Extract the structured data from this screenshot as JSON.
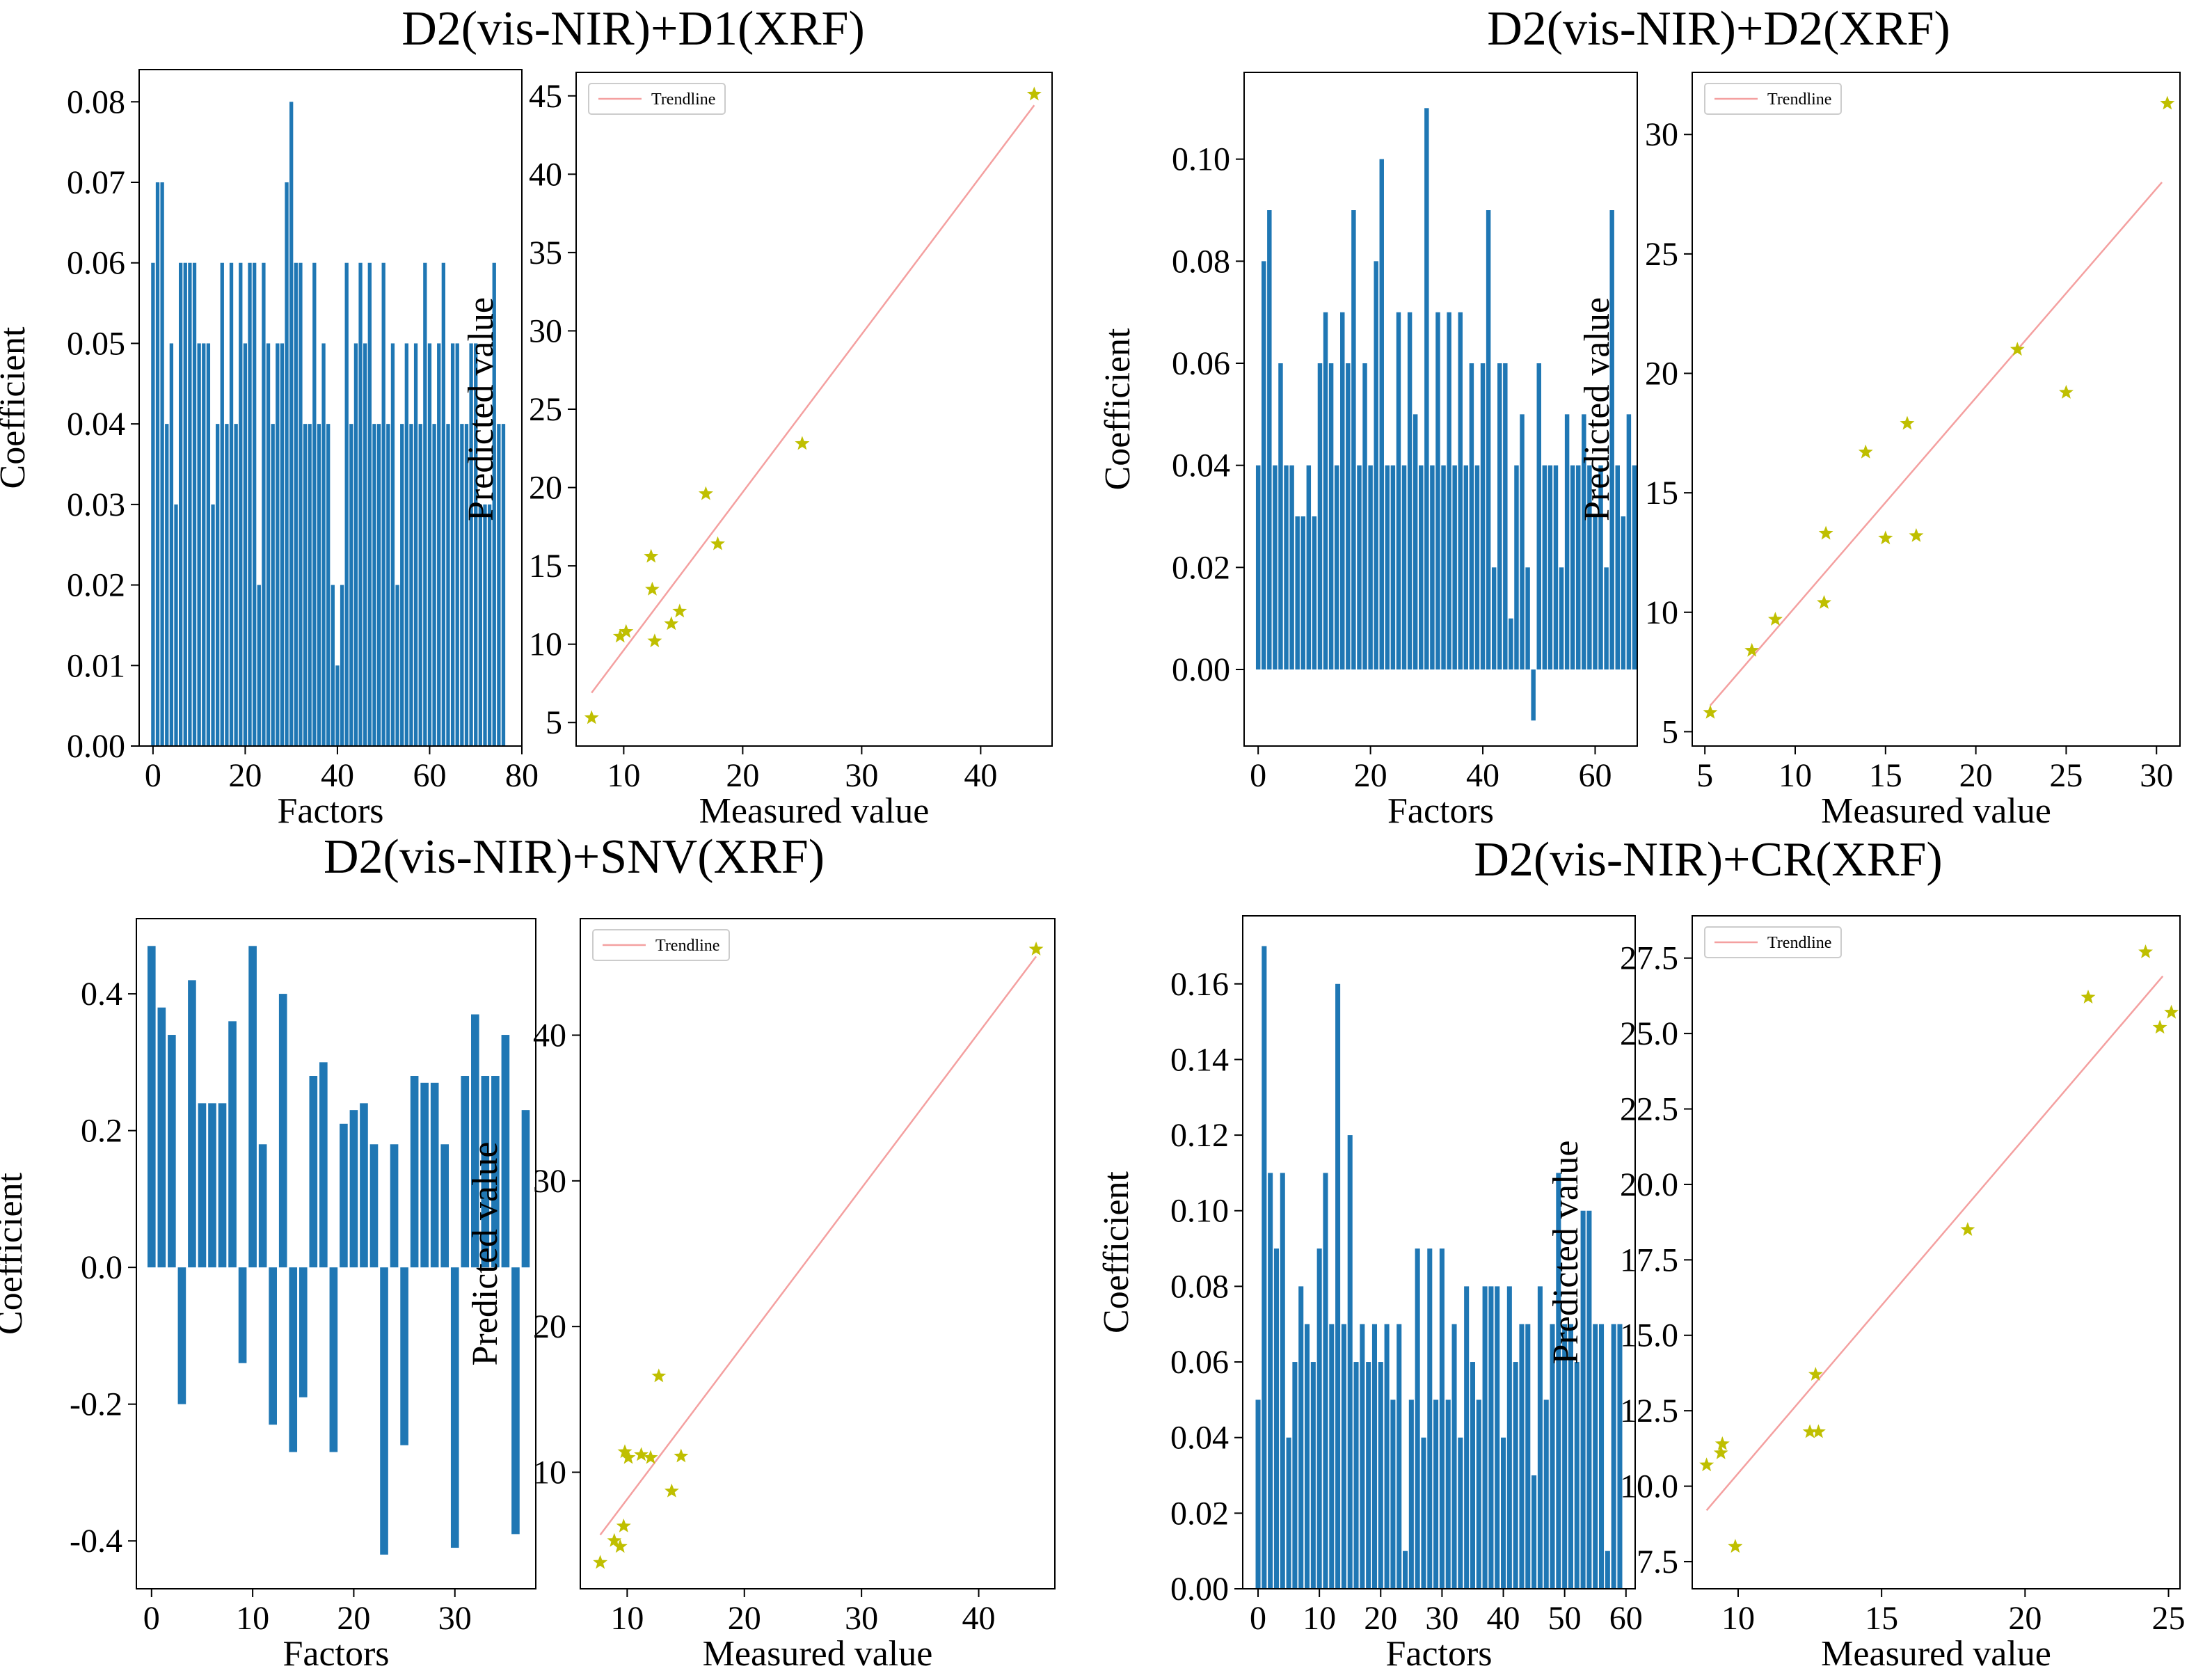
{
  "colors": {
    "bar": "#1f77b4",
    "point": "#bfbf00",
    "trendline": "#f4a0a0",
    "axis": "#000000",
    "background": "#ffffff"
  },
  "panels": [
    {
      "title": "D2(vis-NIR)+D1(XRF)",
      "coefficients": {
        "xlabel": "Factors",
        "ylabel": "Coefficient",
        "xticks": [
          "0",
          "20",
          "40",
          "60",
          "80"
        ],
        "yticks": [
          "0.00",
          "0.01",
          "0.02",
          "0.03",
          "0.04",
          "0.05",
          "0.06",
          "0.07",
          "0.08"
        ]
      },
      "scatter": {
        "xlabel": "Measured value",
        "ylabel": "Predicted value",
        "legend": "Trendline",
        "xticks": [
          "10",
          "20",
          "30",
          "40"
        ],
        "yticks": [
          "5",
          "10",
          "15",
          "20",
          "25",
          "30",
          "35",
          "40",
          "45"
        ]
      }
    },
    {
      "title": "D2(vis-NIR)+D2(XRF)",
      "coefficients": {
        "xlabel": "Factors",
        "ylabel": "Coefficient",
        "xticks": [
          "0",
          "20",
          "40",
          "60"
        ],
        "yticks": [
          "0.00",
          "0.02",
          "0.04",
          "0.06",
          "0.08",
          "0.10"
        ]
      },
      "scatter": {
        "xlabel": "Measured value",
        "ylabel": "Predicted value",
        "legend": "Trendline",
        "xticks": [
          "5",
          "10",
          "15",
          "20",
          "25",
          "30"
        ],
        "yticks": [
          "5",
          "10",
          "15",
          "20",
          "25",
          "30"
        ]
      }
    },
    {
      "title": "D2(vis-NIR)+SNV(XRF)",
      "coefficients": {
        "xlabel": "Factors",
        "ylabel": "Coefficient",
        "xticks": [
          "0",
          "10",
          "20",
          "30"
        ],
        "yticks": [
          "-0.4",
          "-0.2",
          "0.0",
          "0.2",
          "0.4"
        ]
      },
      "scatter": {
        "xlabel": "Measured value",
        "ylabel": "Predicted value",
        "legend": "Trendline",
        "xticks": [
          "10",
          "20",
          "30",
          "40"
        ],
        "yticks": [
          "10",
          "20",
          "30",
          "40"
        ]
      }
    },
    {
      "title": "D2(vis-NIR)+CR(XRF)",
      "coefficients": {
        "xlabel": "Factors",
        "ylabel": "Coefficient",
        "xticks": [
          "0",
          "10",
          "20",
          "30",
          "40",
          "50",
          "60"
        ],
        "yticks": [
          "0.00",
          "0.02",
          "0.04",
          "0.06",
          "0.08",
          "0.10",
          "0.12",
          "0.14",
          "0.16"
        ]
      },
      "scatter": {
        "xlabel": "Measured value",
        "ylabel": "Predicted value",
        "legend": "Trendline",
        "xticks": [
          "10",
          "15",
          "20",
          "25"
        ],
        "yticks": [
          "7.5",
          "10.0",
          "12.5",
          "15.0",
          "17.5",
          "20.0",
          "22.5",
          "25.0",
          "27.5"
        ]
      }
    }
  ],
  "chart_data": [
    {
      "type": "bar",
      "title": "D2(vis-NIR)+D1(XRF)",
      "xlabel": "Factors",
      "ylabel": "Coefficient",
      "xlim": [
        -3,
        80
      ],
      "ylim": [
        0,
        0.084
      ],
      "x_start": 0,
      "values": [
        0.06,
        0.07,
        0.07,
        0.04,
        0.05,
        0.03,
        0.06,
        0.06,
        0.06,
        0.06,
        0.05,
        0.05,
        0.05,
        0.03,
        0.04,
        0.06,
        0.04,
        0.06,
        0.04,
        0.06,
        0.05,
        0.06,
        0.06,
        0.02,
        0.06,
        0.05,
        0.04,
        0.05,
        0.05,
        0.07,
        0.08,
        0.06,
        0.06,
        0.04,
        0.04,
        0.06,
        0.04,
        0.05,
        0.04,
        0.02,
        0.01,
        0.02,
        0.06,
        0.04,
        0.05,
        0.06,
        0.05,
        0.06,
        0.04,
        0.04,
        0.06,
        0.04,
        0.05,
        0.02,
        0.04,
        0.05,
        0.04,
        0.05,
        0.04,
        0.06,
        0.05,
        0.04,
        0.05,
        0.06,
        0.04,
        0.05,
        0.05,
        0.04,
        0.04,
        0.05,
        0.05,
        0.03,
        0.03,
        0.03,
        0.06,
        0.04,
        0.04
      ]
    },
    {
      "type": "scatter",
      "title": "D2(vis-NIR)+D1(XRF)",
      "xlabel": "Measured value",
      "ylabel": "Predicted value",
      "legend": "Trendline",
      "xlim": [
        6,
        46
      ],
      "ylim": [
        3.5,
        46.5
      ],
      "points": [
        [
          7.3,
          5.3
        ],
        [
          9.7,
          10.5
        ],
        [
          10.2,
          10.8
        ],
        [
          12.3,
          15.6
        ],
        [
          12.4,
          13.5
        ],
        [
          12.6,
          10.2
        ],
        [
          14,
          11.3
        ],
        [
          14.7,
          12.1
        ],
        [
          16.9,
          19.6
        ],
        [
          17.9,
          16.4
        ],
        [
          25,
          22.8
        ],
        [
          44.5,
          45.1
        ]
      ],
      "trendline": [
        [
          7.3,
          6.9
        ],
        [
          44.5,
          44.4
        ]
      ]
    },
    {
      "type": "bar",
      "title": "D2(vis-NIR)+D2(XRF)",
      "xlabel": "Factors",
      "ylabel": "Coefficient",
      "xlim": [
        -2.5,
        67.5
      ],
      "ylim": [
        -0.015,
        0.117
      ],
      "x_start": 0,
      "values": [
        0.04,
        0.08,
        0.09,
        0.04,
        0.06,
        0.04,
        0.04,
        0.03,
        0.03,
        0.04,
        0.03,
        0.06,
        0.07,
        0.06,
        0.04,
        0.07,
        0.06,
        0.09,
        0.04,
        0.06,
        0.04,
        0.08,
        0.1,
        0.04,
        0.04,
        0.07,
        0.04,
        0.07,
        0.05,
        0.04,
        0.11,
        0.04,
        0.07,
        0.04,
        0.07,
        0.04,
        0.07,
        0.04,
        0.06,
        0.04,
        0.06,
        0.09,
        0.02,
        0.06,
        0.06,
        0.01,
        0.04,
        0.05,
        0.02,
        -0.01,
        0.06,
        0.04,
        0.04,
        0.04,
        0.02,
        0.05,
        0.04,
        0.04,
        0.05,
        0.04,
        0.03,
        0.04,
        0.02,
        0.09,
        0.04,
        0.03,
        0.05,
        0.04
      ]
    },
    {
      "type": "scatter",
      "title": "D2(vis-NIR)+D2(XRF)",
      "xlabel": "Measured value",
      "ylabel": "Predicted value",
      "legend": "Trendline",
      "xlim": [
        4.3,
        31.3
      ],
      "ylim": [
        4.4,
        32.6
      ],
      "points": [
        [
          5.3,
          5.8
        ],
        [
          7.6,
          8.4
        ],
        [
          8.9,
          9.7
        ],
        [
          11.6,
          10.4
        ],
        [
          11.7,
          13.3
        ],
        [
          13.9,
          16.7
        ],
        [
          15,
          13.1
        ],
        [
          16.2,
          17.9
        ],
        [
          16.7,
          13.2
        ],
        [
          22.3,
          21
        ],
        [
          25,
          19.2
        ],
        [
          30.6,
          31.3
        ]
      ],
      "trendline": [
        [
          5.3,
          6.1
        ],
        [
          30.3,
          28
        ]
      ]
    },
    {
      "type": "bar",
      "title": "D2(vis-NIR)+SNV(XRF)",
      "xlabel": "Factors",
      "ylabel": "Coefficient",
      "xlim": [
        -1.5,
        38
      ],
      "ylim": [
        -0.47,
        0.51
      ],
      "x_start": 0,
      "values": [
        0.47,
        0.38,
        0.34,
        -0.2,
        0.42,
        0.24,
        0.24,
        0.24,
        0.36,
        -0.14,
        0.47,
        0.18,
        -0.23,
        0.4,
        -0.27,
        -0.19,
        0.28,
        0.3,
        -0.27,
        0.21,
        0.23,
        0.24,
        0.18,
        -0.42,
        0.18,
        -0.26,
        0.28,
        0.27,
        0.27,
        0.18,
        -0.41,
        0.28,
        0.37,
        0.28,
        0.28,
        0.34,
        -0.39,
        0.23
      ]
    },
    {
      "type": "scatter",
      "title": "D2(vis-NIR)+SNV(XRF)",
      "xlabel": "Measured value",
      "ylabel": "Predicted value",
      "legend": "Trendline",
      "xlim": [
        6,
        46.5
      ],
      "ylim": [
        2,
        48
      ],
      "points": [
        [
          7.7,
          3.8
        ],
        [
          8.9,
          5.3
        ],
        [
          9.4,
          4.9
        ],
        [
          9.7,
          6.3
        ],
        [
          9.8,
          11.4
        ],
        [
          10.1,
          11
        ],
        [
          11.2,
          11.2
        ],
        [
          12,
          11
        ],
        [
          12.7,
          16.6
        ],
        [
          13.8,
          8.7
        ],
        [
          14.6,
          11.1
        ],
        [
          44.9,
          45.9
        ]
      ],
      "trendline": [
        [
          7.7,
          5.7
        ],
        [
          44.9,
          45.4
        ]
      ]
    },
    {
      "type": "bar",
      "title": "D2(vis-NIR)+CR(XRF)",
      "xlabel": "Factors",
      "ylabel": "Coefficient",
      "xlim": [
        -2.5,
        61.5
      ],
      "ylim": [
        0,
        0.178
      ],
      "x_start": 0,
      "values": [
        0.05,
        0.17,
        0.11,
        0.09,
        0.11,
        0.04,
        0.06,
        0.08,
        0.07,
        0.06,
        0.09,
        0.11,
        0.07,
        0.16,
        0.07,
        0.12,
        0.06,
        0.07,
        0.06,
        0.07,
        0.06,
        0.07,
        0.05,
        0.07,
        0.01,
        0.05,
        0.09,
        0.04,
        0.09,
        0.05,
        0.09,
        0.05,
        0.07,
        0.04,
        0.08,
        0.06,
        0.05,
        0.08,
        0.08,
        0.08,
        0.04,
        0.08,
        0.06,
        0.07,
        0.07,
        0.03,
        0.08,
        0.05,
        0.07,
        0.11,
        0.07,
        0.07,
        0.06,
        0.1,
        0.1,
        0.07,
        0.07,
        0.01,
        0.07,
        0.07
      ]
    },
    {
      "type": "scatter",
      "title": "D2(vis-NIR)+CR(XRF)",
      "xlabel": "Measured value",
      "ylabel": "Predicted value",
      "legend": "Trendline",
      "xlim": [
        8.4,
        25.4
      ],
      "ylim": [
        6.6,
        28.9
      ],
      "points": [
        [
          8.9,
          10.7
        ],
        [
          9.4,
          11.1
        ],
        [
          9.45,
          11.4
        ],
        [
          9.9,
          8
        ],
        [
          12.5,
          11.8
        ],
        [
          12.7,
          13.7
        ],
        [
          12.8,
          11.8
        ],
        [
          18,
          18.5
        ],
        [
          22.2,
          26.2
        ],
        [
          24.2,
          27.7
        ],
        [
          24.7,
          25.2
        ],
        [
          25.1,
          25.7
        ]
      ],
      "trendline": [
        [
          8.9,
          9.2
        ],
        [
          24.8,
          26.9
        ]
      ]
    }
  ]
}
